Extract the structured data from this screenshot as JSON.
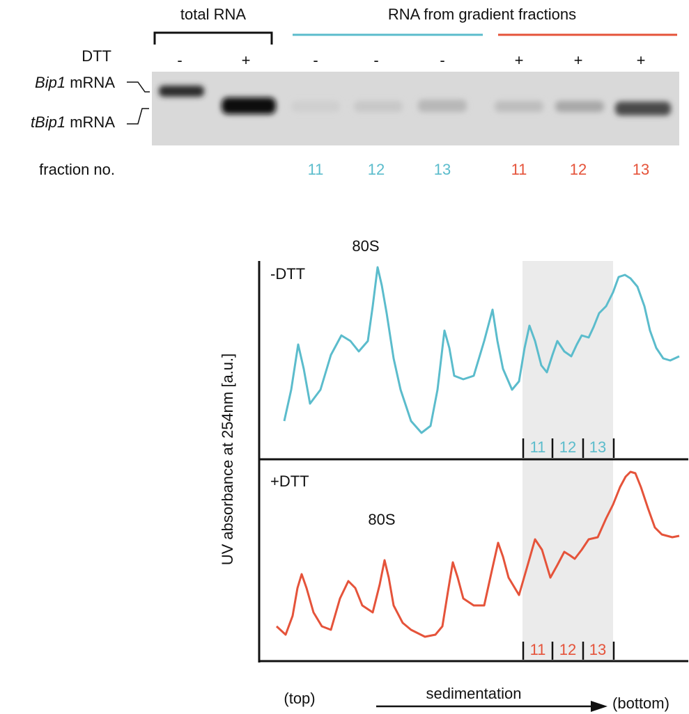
{
  "gel": {
    "header_left": "total RNA",
    "header_right": "RNA from gradient fractions",
    "dtt_label": "DTT",
    "dtt_signs": [
      "-",
      "+",
      "-",
      "-",
      "-",
      "+",
      "+",
      "+"
    ],
    "band_labels": [
      {
        "gene": "Bip1",
        "suffix": "mRNA"
      },
      {
        "gene": "tBip1",
        "suffix": "mRNA"
      }
    ],
    "fraction_label": "fraction no.",
    "fractions": [
      "11",
      "12",
      "13",
      "11",
      "12",
      "13"
    ]
  },
  "profiles": {
    "y_axis_label": "UV absorbance at 254nm [a.u.]",
    "panels": [
      {
        "label": "-DTT",
        "peak_label": "80S",
        "fractions": [
          "11",
          "12",
          "13"
        ]
      },
      {
        "label": "+DTT",
        "peak_label": "80S",
        "fractions": [
          "11",
          "12",
          "13"
        ]
      }
    ],
    "x_left": "(top)",
    "x_axis_label": "sedimentation",
    "x_right": "(bottom)"
  }
}
